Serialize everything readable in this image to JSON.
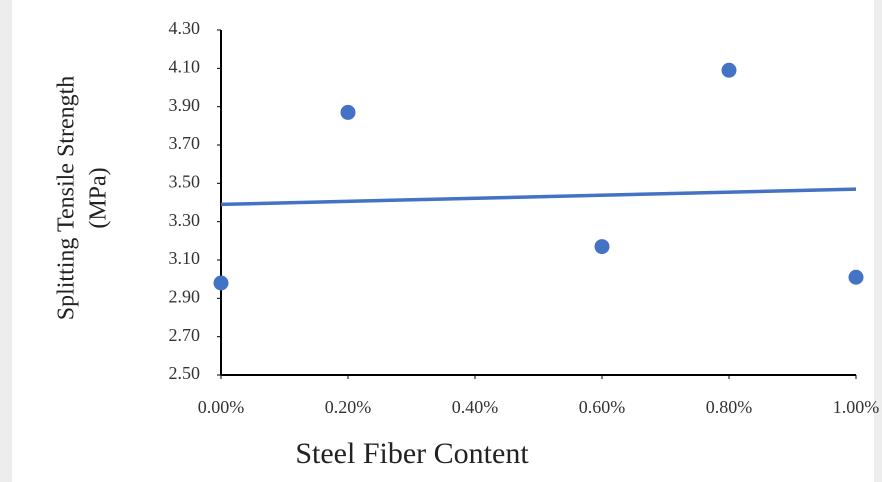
{
  "chart_data": {
    "type": "scatter",
    "xlabel": "Steel Fiber Content",
    "ylabel": [
      "Splitting Tensile Strength",
      "(MPa)"
    ],
    "x": [
      0,
      0.2,
      0.6,
      0.8,
      1.0
    ],
    "values": [
      2.98,
      3.87,
      3.17,
      4.09,
      3.01
    ],
    "color": "#4472c4",
    "trendline": {
      "x": [
        0,
        1.0
      ],
      "values": [
        3.39,
        3.47
      ],
      "color": "#4472c4"
    },
    "xlim": [
      0,
      1.0
    ],
    "xticks": [
      {
        "value": 0,
        "label": "0.00%"
      },
      {
        "value": 0.2,
        "label": "0.20%"
      },
      {
        "value": 0.4,
        "label": "0.40%"
      },
      {
        "value": 0.6,
        "label": "0.60%"
      },
      {
        "value": 0.8,
        "label": "0.80%"
      },
      {
        "value": 1.0,
        "label": "1.00%"
      }
    ],
    "ylim": [
      2.5,
      4.3
    ],
    "yticks": [
      {
        "value": 2.5,
        "label": "2.50"
      },
      {
        "value": 2.7,
        "label": "2.70"
      },
      {
        "value": 2.9,
        "label": "2.90"
      },
      {
        "value": 3.1,
        "label": "3.10"
      },
      {
        "value": 3.3,
        "label": "3.30"
      },
      {
        "value": 3.5,
        "label": "3.50"
      },
      {
        "value": 3.7,
        "label": "3.70"
      },
      {
        "value": 3.9,
        "label": "3.90"
      },
      {
        "value": 4.1,
        "label": "4.10"
      },
      {
        "value": 4.3,
        "label": "4.30"
      }
    ],
    "grid": false
  }
}
